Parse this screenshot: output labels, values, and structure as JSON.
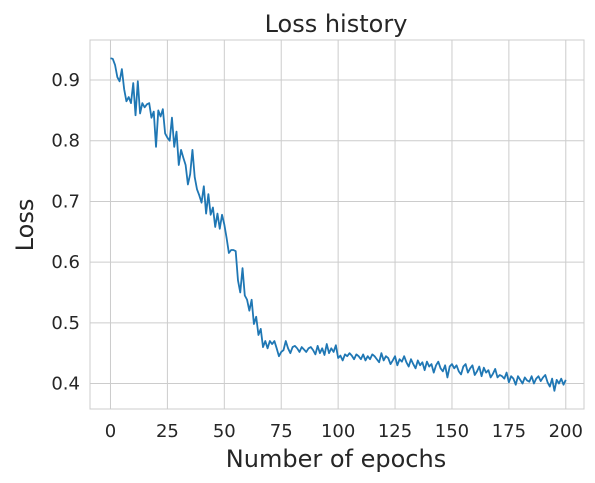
{
  "chart_data": {
    "type": "line",
    "title": "Loss history",
    "xlabel": "Number of epochs",
    "ylabel": "Loss",
    "xlim": [
      -9,
      208
    ],
    "ylim": [
      0.358,
      0.966
    ],
    "xticks": [
      0,
      25,
      50,
      75,
      100,
      125,
      150,
      175,
      200
    ],
    "yticks": [
      0.4,
      0.5,
      0.6,
      0.7,
      0.8,
      0.9
    ],
    "grid": true,
    "line_color": "#1f77b4",
    "series": [
      {
        "x": [
          0,
          1,
          2,
          3,
          4,
          5,
          6,
          7,
          8,
          9,
          10,
          11,
          12,
          13,
          14,
          15,
          16,
          17,
          18,
          19,
          20,
          21,
          22,
          23,
          24,
          25,
          26,
          27,
          28,
          29,
          30,
          31,
          32,
          33,
          34,
          35,
          36,
          37,
          38,
          39,
          40,
          41,
          42,
          43,
          44,
          45,
          46,
          47,
          48,
          49,
          50,
          51,
          52,
          53,
          54,
          55,
          56,
          57,
          58,
          59,
          60,
          61,
          62,
          63,
          64,
          65,
          66,
          67,
          68,
          69,
          70,
          71,
          72,
          73,
          74,
          75,
          76,
          77,
          78,
          79,
          80,
          81,
          82,
          83,
          84,
          85,
          86,
          87,
          88,
          89,
          90,
          91,
          92,
          93,
          94,
          95,
          96,
          97,
          98,
          99,
          100,
          101,
          102,
          103,
          104,
          105,
          106,
          107,
          108,
          109,
          110,
          111,
          112,
          113,
          114,
          115,
          116,
          117,
          118,
          119,
          120,
          121,
          122,
          123,
          124,
          125,
          126,
          127,
          128,
          129,
          130,
          131,
          132,
          133,
          134,
          135,
          136,
          137,
          138,
          139,
          140,
          141,
          142,
          143,
          144,
          145,
          146,
          147,
          148,
          149,
          150,
          151,
          152,
          153,
          154,
          155,
          156,
          157,
          158,
          159,
          160,
          161,
          162,
          163,
          164,
          165,
          166,
          167,
          168,
          169,
          170,
          171,
          172,
          173,
          174,
          175,
          176,
          177,
          178,
          179,
          180,
          181,
          182,
          183,
          184,
          185,
          186,
          187,
          188,
          189,
          190,
          191,
          192,
          193,
          194,
          195,
          196,
          197,
          198,
          199,
          200
        ],
        "y": [
          0.936,
          0.935,
          0.925,
          0.905,
          0.898,
          0.918,
          0.885,
          0.865,
          0.872,
          0.862,
          0.895,
          0.842,
          0.898,
          0.845,
          0.862,
          0.855,
          0.86,
          0.862,
          0.838,
          0.848,
          0.79,
          0.85,
          0.84,
          0.852,
          0.812,
          0.805,
          0.8,
          0.838,
          0.79,
          0.815,
          0.76,
          0.785,
          0.772,
          0.76,
          0.728,
          0.745,
          0.785,
          0.74,
          0.72,
          0.71,
          0.698,
          0.725,
          0.68,
          0.712,
          0.678,
          0.69,
          0.658,
          0.68,
          0.655,
          0.678,
          0.662,
          0.64,
          0.615,
          0.62,
          0.62,
          0.618,
          0.57,
          0.55,
          0.59,
          0.545,
          0.538,
          0.52,
          0.538,
          0.498,
          0.51,
          0.48,
          0.49,
          0.46,
          0.47,
          0.458,
          0.47,
          0.465,
          0.47,
          0.458,
          0.445,
          0.452,
          0.455,
          0.47,
          0.458,
          0.45,
          0.46,
          0.462,
          0.458,
          0.452,
          0.46,
          0.456,
          0.452,
          0.458,
          0.46,
          0.455,
          0.448,
          0.462,
          0.45,
          0.458,
          0.447,
          0.465,
          0.45,
          0.458,
          0.452,
          0.463,
          0.442,
          0.446,
          0.438,
          0.448,
          0.445,
          0.45,
          0.446,
          0.44,
          0.448,
          0.445,
          0.44,
          0.448,
          0.438,
          0.445,
          0.44,
          0.448,
          0.445,
          0.44,
          0.435,
          0.45,
          0.438,
          0.445,
          0.442,
          0.432,
          0.438,
          0.445,
          0.43,
          0.44,
          0.436,
          0.445,
          0.435,
          0.428,
          0.44,
          0.432,
          0.425,
          0.438,
          0.43,
          0.435,
          0.422,
          0.436,
          0.428,
          0.432,
          0.418,
          0.43,
          0.436,
          0.425,
          0.42,
          0.43,
          0.41,
          0.428,
          0.432,
          0.425,
          0.43,
          0.42,
          0.415,
          0.428,
          0.432,
          0.418,
          0.425,
          0.43,
          0.414,
          0.42,
          0.428,
          0.412,
          0.426,
          0.418,
          0.422,
          0.41,
          0.416,
          0.424,
          0.41,
          0.414,
          0.412,
          0.408,
          0.418,
          0.402,
          0.412,
          0.408,
          0.398,
          0.412,
          0.406,
          0.4,
          0.41,
          0.405,
          0.403,
          0.412,
          0.4,
          0.408,
          0.412,
          0.404,
          0.41,
          0.414,
          0.402,
          0.395,
          0.408,
          0.388,
          0.406,
          0.4,
          0.408,
          0.398,
          0.406
        ]
      }
    ]
  }
}
